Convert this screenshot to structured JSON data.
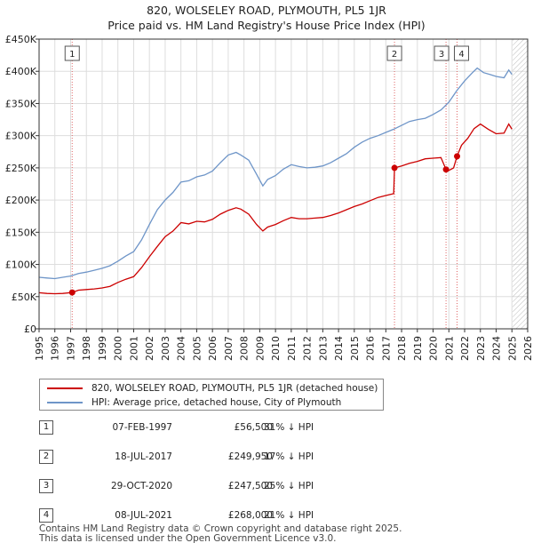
{
  "title_line1": "820, WOLSELEY ROAD, PLYMOUTH, PL5 1JR",
  "title_line2": "Price paid vs. HM Land Registry's House Price Index (HPI)",
  "colors": {
    "price": "#cc0000",
    "hpi": "#6e95c8",
    "vline": "#e06666",
    "grid": "#dddddd"
  },
  "chart_data": {
    "type": "line",
    "xlim": [
      1995,
      2026
    ],
    "ylim": [
      0,
      450000
    ],
    "x_ticks": [
      "1995",
      "1996",
      "1997",
      "1998",
      "1999",
      "2000",
      "2001",
      "2002",
      "2003",
      "2004",
      "2005",
      "2006",
      "2007",
      "2008",
      "2009",
      "2010",
      "2011",
      "2012",
      "2013",
      "2014",
      "2015",
      "2016",
      "2017",
      "2018",
      "2019",
      "2020",
      "2021",
      "2022",
      "2023",
      "2024",
      "2025",
      "2026"
    ],
    "y_ticks": [
      {
        "value": 0,
        "label": "£0"
      },
      {
        "value": 50000,
        "label": "£50K"
      },
      {
        "value": 100000,
        "label": "£100K"
      },
      {
        "value": 150000,
        "label": "£150K"
      },
      {
        "value": 200000,
        "label": "£200K"
      },
      {
        "value": 250000,
        "label": "£250K"
      },
      {
        "value": 300000,
        "label": "£300K"
      },
      {
        "value": 350000,
        "label": "£350K"
      },
      {
        "value": 400000,
        "label": "£400K"
      },
      {
        "value": 450000,
        "label": "£450K"
      }
    ],
    "series": [
      {
        "name": "820, WOLSELEY ROAD, PLYMOUTH, PL5 1JR (detached house)",
        "x": [
          1995.0,
          1995.5,
          1996.0,
          1996.5,
          1997.1,
          1997.5,
          1998.0,
          1998.5,
          1999.0,
          1999.5,
          2000.0,
          2000.5,
          2001.0,
          2001.5,
          2002.0,
          2002.5,
          2003.0,
          2003.5,
          2004.0,
          2004.5,
          2005.0,
          2005.5,
          2006.0,
          2006.5,
          2007.0,
          2007.5,
          2007.8,
          2008.3,
          2008.8,
          2009.2,
          2009.5,
          2010.0,
          2010.5,
          2011.0,
          2011.5,
          2012.0,
          2012.5,
          2013.0,
          2013.5,
          2014.0,
          2014.5,
          2015.0,
          2015.5,
          2016.0,
          2016.5,
          2017.0,
          2017.5,
          2017.55,
          2018.0,
          2018.5,
          2019.0,
          2019.5,
          2020.0,
          2020.5,
          2020.82,
          2021.0,
          2021.3,
          2021.52,
          2021.8,
          2022.2,
          2022.6,
          2023.0,
          2023.5,
          2024.0,
          2024.5,
          2024.8,
          2025.0
        ],
        "values": [
          56000,
          55000,
          54500,
          55000,
          56500,
          60000,
          61000,
          62000,
          63500,
          66000,
          72000,
          77000,
          81000,
          95000,
          112000,
          128000,
          143000,
          152000,
          165000,
          163000,
          167000,
          166000,
          170000,
          178000,
          184000,
          188000,
          186000,
          178000,
          162000,
          152000,
          158000,
          162000,
          168000,
          173000,
          171000,
          171000,
          172000,
          173000,
          176000,
          180000,
          185000,
          190000,
          194000,
          199000,
          204000,
          207000,
          210000,
          249950,
          253000,
          257000,
          260000,
          264000,
          265000,
          266000,
          247500,
          246000,
          250000,
          268000,
          285000,
          296000,
          311000,
          318000,
          310000,
          303000,
          304000,
          318000,
          310000
        ]
      },
      {
        "name": "HPI: Average price, detached house, City of Plymouth",
        "x": [
          1995.0,
          1995.5,
          1996.0,
          1996.5,
          1997.0,
          1997.5,
          1998.0,
          1998.5,
          1999.0,
          1999.5,
          2000.0,
          2000.5,
          2001.0,
          2001.5,
          2002.0,
          2002.5,
          2003.0,
          2003.5,
          2004.0,
          2004.5,
          2005.0,
          2005.5,
          2006.0,
          2006.5,
          2007.0,
          2007.5,
          2007.8,
          2008.3,
          2008.8,
          2009.2,
          2009.5,
          2010.0,
          2010.5,
          2011.0,
          2011.5,
          2012.0,
          2012.5,
          2013.0,
          2013.5,
          2014.0,
          2014.5,
          2015.0,
          2015.5,
          2016.0,
          2016.5,
          2017.0,
          2017.5,
          2018.0,
          2018.5,
          2019.0,
          2019.5,
          2020.0,
          2020.5,
          2021.0,
          2021.5,
          2022.0,
          2022.5,
          2022.8,
          2023.2,
          2023.6,
          2024.0,
          2024.5,
          2024.8,
          2025.0
        ],
        "values": [
          80000,
          79000,
          78000,
          80000,
          82000,
          86000,
          88000,
          91000,
          94000,
          98000,
          105000,
          113000,
          120000,
          138000,
          162000,
          185000,
          200000,
          212000,
          228000,
          230000,
          236000,
          239000,
          245000,
          258000,
          270000,
          274000,
          270000,
          262000,
          240000,
          222000,
          232000,
          238000,
          248000,
          255000,
          252000,
          250000,
          251000,
          253000,
          258000,
          265000,
          272000,
          282000,
          290000,
          296000,
          300000,
          305000,
          310000,
          316000,
          322000,
          325000,
          327000,
          333000,
          340000,
          352000,
          370000,
          385000,
          398000,
          405000,
          398000,
          395000,
          392000,
          390000,
          402000,
          395000
        ]
      }
    ],
    "events": [
      {
        "label": "1",
        "x": 1997.1,
        "price": 56500
      },
      {
        "label": "2",
        "x": 2017.55,
        "price": 249950
      },
      {
        "label": "3",
        "x": 2020.82,
        "price": 247500
      },
      {
        "label": "4",
        "x": 2021.52,
        "price": 268000
      }
    ]
  },
  "legend": {
    "price_label": "820, WOLSELEY ROAD, PLYMOUTH, PL5 1JR (detached house)",
    "hpi_label": "HPI: Average price, detached house, City of Plymouth"
  },
  "sales": [
    {
      "num": "1",
      "date": "07-FEB-1997",
      "price": "£56,500",
      "hpi": "31% ↓ HPI"
    },
    {
      "num": "2",
      "date": "18-JUL-2017",
      "price": "£249,950",
      "hpi": "17% ↓ HPI"
    },
    {
      "num": "3",
      "date": "29-OCT-2020",
      "price": "£247,500",
      "hpi": "25% ↓ HPI"
    },
    {
      "num": "4",
      "date": "08-JUL-2021",
      "price": "£268,000",
      "hpi": "21% ↓ HPI"
    }
  ],
  "footer_line1": "Contains HM Land Registry data © Crown copyright and database right 2025.",
  "footer_line2": "This data is licensed under the Open Government Licence v3.0."
}
